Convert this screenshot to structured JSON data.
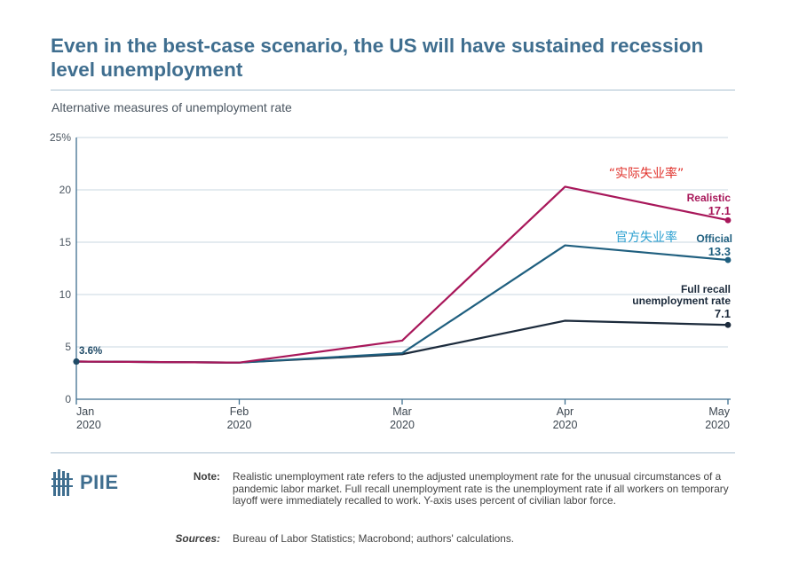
{
  "title": "Even in the best-case scenario, the US will have sustained recession level unemployment",
  "subtitle": "Alternative measures of unemployment rate",
  "chart_data": {
    "type": "line",
    "categories": [
      "Jan\n2020",
      "Feb\n2020",
      "Mar\n2020",
      "Apr\n2020",
      "May\n2020"
    ],
    "x_tick_months": [
      "Jan",
      "Feb",
      "Mar",
      "Apr",
      "May"
    ],
    "x_tick_years": [
      "2020",
      "2020",
      "2020",
      "2020",
      "2020"
    ],
    "y_ticks": [
      "0",
      "5",
      "10",
      "15",
      "20",
      "25%"
    ],
    "ylim": [
      0,
      25
    ],
    "series": [
      {
        "name": "Realistic",
        "color": "#a8175a",
        "values": [
          3.6,
          3.5,
          5.6,
          20.3,
          17.1
        ],
        "end_label": "17.1"
      },
      {
        "name": "Official",
        "color": "#1f5f7f",
        "values": [
          3.6,
          3.5,
          4.4,
          14.7,
          13.3
        ],
        "end_label": "13.3"
      },
      {
        "name": "Full recall unemployment rate",
        "name_line1": "Full recall",
        "name_line2": "unemployment rate",
        "color": "#1c2b3c",
        "values": [
          3.6,
          3.5,
          4.3,
          7.5,
          7.1
        ],
        "end_label": "7.1"
      }
    ],
    "start_label": "3.6%",
    "annotations": {
      "realistic_cn": "“实际失业率”",
      "official_cn": "官方失业率"
    }
  },
  "logo": {
    "text": "PIIE",
    "icon": "piie-building-icon"
  },
  "note": {
    "label": "Note:",
    "text": "Realistic unemployment rate refers to the adjusted unemployment rate for the unusual circumstances of a pandemic labor market. Full recall unemployment rate is the unemployment rate if all workers on temporary layoff were immediately recalled to work. Y-axis uses percent of civilian labor force."
  },
  "sources": {
    "label": "Sources:",
    "text": "Bureau of Labor Statistics; Macrobond; authors' calculations."
  },
  "colors": {
    "title": "#3f6e8f",
    "grid": "#c9d7e2",
    "axis": "#3f6e8f"
  }
}
